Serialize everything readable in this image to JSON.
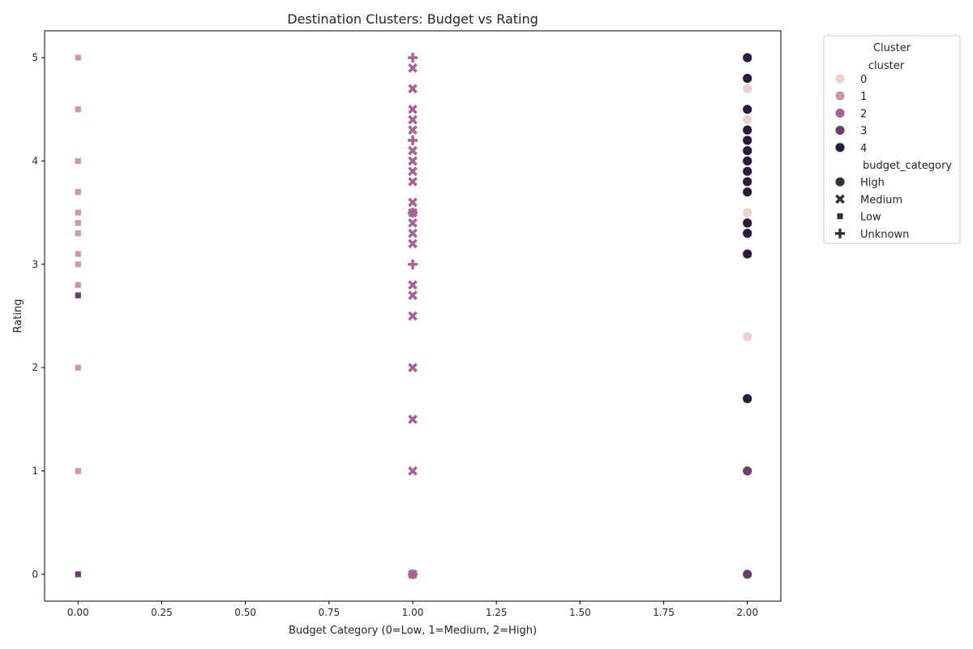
{
  "chart_data": {
    "type": "scatter",
    "title": "Destination Clusters: Budget vs Rating",
    "xlabel": "Budget Category (0=Low, 1=Medium, 2=High)",
    "ylabel": "Rating",
    "xlim": [
      -0.1,
      2.1
    ],
    "ylim": [
      -0.26,
      5.26
    ],
    "x_ticks": [
      "0.00",
      "0.25",
      "0.50",
      "0.75",
      "1.00",
      "1.25",
      "1.50",
      "1.75",
      "2.00"
    ],
    "y_ticks": [
      "0",
      "1",
      "2",
      "3",
      "4",
      "5"
    ],
    "grid": false,
    "legend": {
      "title": "Cluster",
      "placement": "outside-top-right",
      "hue_title": "cluster",
      "hue_entries": [
        {
          "label": "0",
          "color": "#ecd1cd"
        },
        {
          "label": "1",
          "color": "#cf96a9"
        },
        {
          "label": "2",
          "color": "#a56495"
        },
        {
          "label": "3",
          "color": "#6b3e6f"
        },
        {
          "label": "4",
          "color": "#2b1b3c"
        }
      ],
      "style_title": "budget_category",
      "style_entries": [
        {
          "label": "High",
          "marker": "circle"
        },
        {
          "label": "Medium",
          "marker": "x"
        },
        {
          "label": "Low",
          "marker": "square"
        },
        {
          "label": "Unknown",
          "marker": "plus"
        }
      ]
    },
    "series": [
      {
        "cluster": "1",
        "budget_category": "Low",
        "x": [
          0,
          0,
          0,
          0,
          0,
          0,
          0,
          0,
          0,
          0,
          0,
          0
        ],
        "y": [
          5.0,
          4.5,
          4.0,
          3.7,
          3.5,
          3.4,
          3.3,
          3.1,
          3.0,
          2.8,
          2.0,
          1.0
        ]
      },
      {
        "cluster": "3",
        "budget_category": "Low",
        "x": [
          0,
          0
        ],
        "y": [
          2.7,
          0.0
        ]
      },
      {
        "cluster": "2",
        "budget_category": "Medium",
        "x": [
          1,
          1,
          1,
          1,
          1,
          1,
          1,
          1,
          1,
          1,
          1,
          1,
          1,
          1,
          1,
          1,
          1,
          1,
          1,
          1,
          1
        ],
        "y": [
          4.9,
          4.7,
          4.5,
          4.4,
          4.3,
          4.1,
          4.0,
          3.9,
          3.8,
          3.6,
          3.5,
          3.4,
          3.3,
          3.2,
          2.8,
          2.7,
          2.5,
          2.0,
          1.5,
          1.0,
          0.0
        ]
      },
      {
        "cluster": "2",
        "budget_category": "Unknown",
        "x": [
          1,
          1,
          1,
          1,
          1
        ],
        "y": [
          5.0,
          4.2,
          3.5,
          3.0,
          0.0
        ]
      },
      {
        "cluster": "4",
        "budget_category": "High",
        "x": [
          2,
          2,
          2,
          2,
          2,
          2,
          2,
          2,
          2,
          2,
          2,
          2,
          2,
          2
        ],
        "y": [
          5.0,
          4.8,
          4.5,
          4.3,
          4.2,
          4.1,
          4.0,
          3.9,
          3.8,
          3.7,
          3.4,
          3.3,
          3.1,
          1.7
        ]
      },
      {
        "cluster": "0",
        "budget_category": "High",
        "x": [
          2,
          2,
          2,
          2
        ],
        "y": [
          4.7,
          4.4,
          3.5,
          2.3
        ]
      },
      {
        "cluster": "3",
        "budget_category": "High",
        "x": [
          2,
          2
        ],
        "y": [
          1.0,
          0.0
        ]
      }
    ]
  }
}
